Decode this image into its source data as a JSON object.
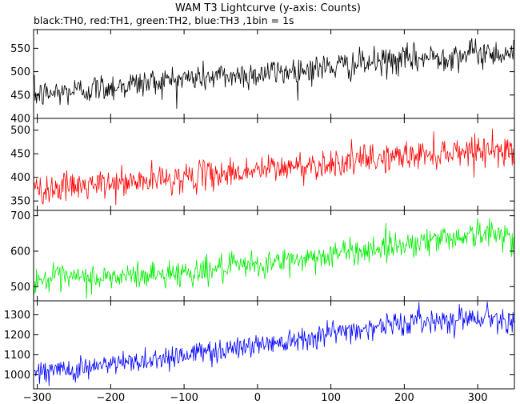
{
  "chart_data": {
    "type": "line",
    "title": "WAM T3 Lightcurve (y-axis: Counts)",
    "subtitle": "black:TH0, red:TH1, green:TH2, blue:TH3 ,1bin = 1s",
    "xlim": [
      -305,
      350
    ],
    "x_ticks": [
      -300,
      -200,
      -100,
      0,
      100,
      200,
      300
    ],
    "x_tick_labels": [
      "−300",
      "−200",
      "−100",
      "0",
      "100",
      "200",
      "300"
    ],
    "grid": false,
    "bin_seconds": 1,
    "panels": [
      {
        "series": "TH0",
        "color": "#000000",
        "ylim": [
          400,
          590
        ],
        "y_ticks": [
          400,
          450,
          500,
          550
        ],
        "keypoints": [
          [
            -300,
            450
          ],
          [
            -200,
            468
          ],
          [
            -100,
            485
          ],
          [
            0,
            495
          ],
          [
            100,
            510
          ],
          [
            200,
            525
          ],
          [
            300,
            540
          ],
          [
            345,
            540
          ]
        ],
        "noise_amplitude": 28
      },
      {
        "series": "TH1",
        "color": "#ff0000",
        "ylim": [
          330,
          525
        ],
        "y_ticks": [
          350,
          400,
          450,
          500
        ],
        "keypoints": [
          [
            -300,
            375
          ],
          [
            -200,
            385
          ],
          [
            -100,
            400
          ],
          [
            0,
            415
          ],
          [
            100,
            430
          ],
          [
            200,
            445
          ],
          [
            300,
            460
          ],
          [
            345,
            455
          ]
        ],
        "noise_amplitude": 28
      },
      {
        "series": "TH2",
        "color": "#00ee00",
        "ylim": [
          460,
          715
        ],
        "y_ticks": [
          500,
          600,
          700
        ],
        "keypoints": [
          [
            -300,
            520
          ],
          [
            -200,
            525
          ],
          [
            -100,
            540
          ],
          [
            0,
            560
          ],
          [
            100,
            590
          ],
          [
            200,
            620
          ],
          [
            300,
            650
          ],
          [
            345,
            645
          ]
        ],
        "noise_amplitude": 35
      },
      {
        "series": "TH3",
        "color": "#0000ff",
        "ylim": [
          930,
          1370
        ],
        "y_ticks": [
          1000,
          1100,
          1200,
          1300
        ],
        "keypoints": [
          [
            -300,
            1010
          ],
          [
            -200,
            1050
          ],
          [
            -100,
            1100
          ],
          [
            0,
            1150
          ],
          [
            100,
            1210
          ],
          [
            200,
            1260
          ],
          [
            300,
            1290
          ],
          [
            345,
            1280
          ]
        ],
        "noise_amplitude": 55
      }
    ]
  }
}
